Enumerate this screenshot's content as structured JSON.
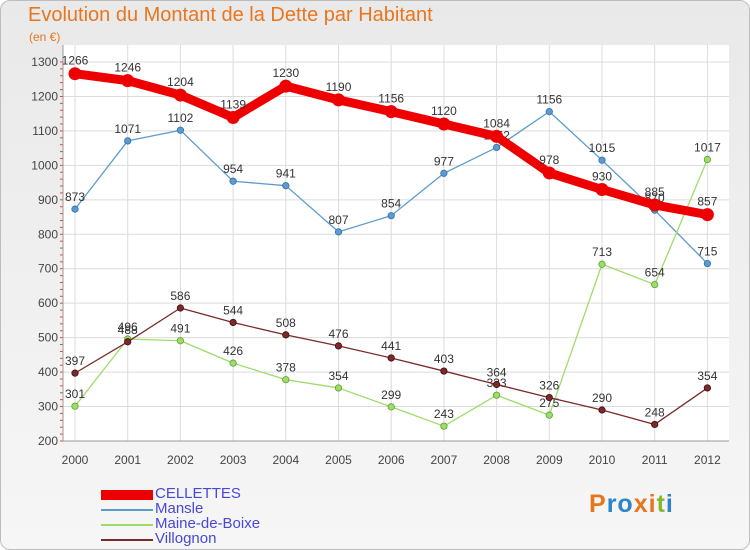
{
  "title": "Evolution du Montant de la Dette par Habitant",
  "subtitle": "(en €)",
  "logo": {
    "text": "Proxiti",
    "letter_colors": [
      "#e8761e",
      "#2c84c9",
      "#2c84c9",
      "#e8761e",
      "#e8761e",
      "#86b82d",
      "#2c84c9"
    ]
  },
  "chart_data": {
    "type": "line",
    "title": "Evolution du Montant de la Dette par Habitant",
    "ylabel": "(en €)",
    "x": [
      "2000",
      "2001",
      "2002",
      "2003",
      "2004",
      "2005",
      "2006",
      "2007",
      "2008",
      "2009",
      "2010",
      "2011",
      "2012"
    ],
    "ylim": [
      200,
      1300
    ],
    "yticks": [
      "200",
      "300",
      "400",
      "500",
      "600",
      "700",
      "800",
      "900",
      "1000",
      "1100",
      "1200",
      "1300"
    ],
    "grid": true,
    "legend_position": "bottom-left",
    "series": [
      {
        "name": "CELLETTES",
        "color": "#ee0000",
        "values": [
          1266,
          1246,
          1204,
          1139,
          1230,
          1190,
          1156,
          1120,
          1084,
          978,
          930,
          885,
          857
        ]
      },
      {
        "name": "Mansle",
        "color": "#5b9bd0",
        "values": [
          873,
          1071,
          1102,
          954,
          941,
          807,
          854,
          977,
          1052,
          1156,
          1015,
          870,
          715
        ]
      },
      {
        "name": "Maine-de-Boixe",
        "color": "#9fdc6b",
        "values": [
          301,
          496,
          491,
          426,
          378,
          354,
          299,
          243,
          333,
          275,
          713,
          654,
          1017
        ]
      },
      {
        "name": "Villognon",
        "color": "#7a2a2a",
        "values": [
          397,
          488,
          586,
          544,
          508,
          476,
          441,
          403,
          364,
          326,
          290,
          248,
          354
        ]
      }
    ]
  }
}
